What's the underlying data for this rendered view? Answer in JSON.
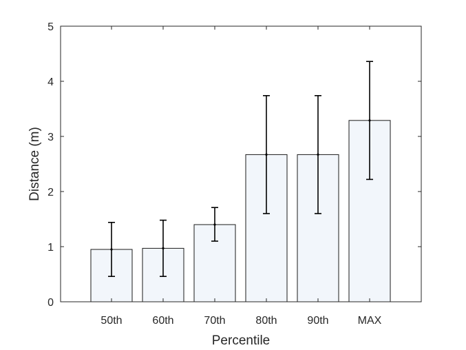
{
  "chart_data": {
    "type": "bar",
    "categories": [
      "50th",
      "60th",
      "70th",
      "80th",
      "90th",
      "MAX"
    ],
    "values": [
      0.95,
      0.97,
      1.4,
      2.67,
      2.67,
      3.29
    ],
    "error_low": [
      0.46,
      0.46,
      1.1,
      1.6,
      1.6,
      2.22
    ],
    "error_high": [
      1.44,
      1.48,
      1.71,
      3.74,
      3.74,
      4.36
    ],
    "xlabel": "Percentile",
    "ylabel": "Distance (m)",
    "ylim": [
      0,
      5
    ],
    "yticks": [
      "0",
      "1",
      "2",
      "3",
      "4",
      "5"
    ],
    "grid": false,
    "colors": {
      "bar_fill": "#f2f6fb",
      "bar_edge": "#1a1a1a",
      "error_bar": "#000000",
      "axis": "#262626"
    }
  }
}
